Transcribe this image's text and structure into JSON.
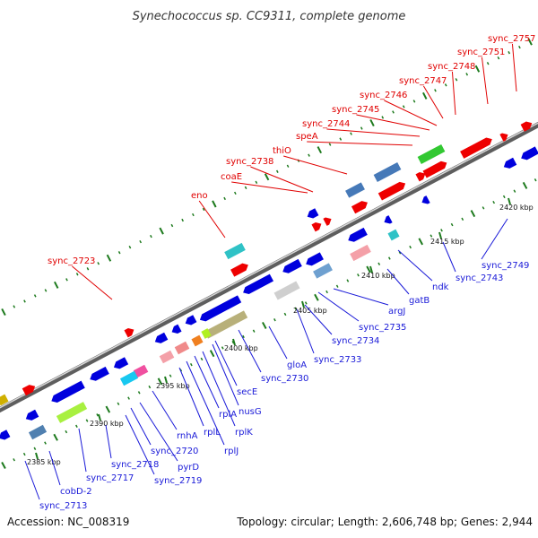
{
  "title": "Synechococcus sp. CC9311, complete genome",
  "footer": {
    "accession": "Accession: NC_008319",
    "summary": "Topology: circular; Length: 2,606,748 bp; Genes: 2,944"
  },
  "colors": {
    "forward_label": "#e00000",
    "reverse_label": "#1a1ad8",
    "forward_feature": "#ee0000",
    "reverse_feature": "#0000dd",
    "rrna_feature": "#d4b483",
    "trna_feature": "#8cc98c",
    "ruler_green": "#1d7a1d",
    "backbone": "#8a8a8a"
  },
  "ruler_ticks": [
    "2385 kbp",
    "2390 kbp",
    "2395 kbp",
    "2400 kbp",
    "2405 kbp",
    "2410 kbp",
    "2415 kbp",
    "2420 kbp"
  ],
  "forward_labels": [
    "sync_2723",
    "eno",
    "coaE",
    "sync_2738",
    "thiO",
    "speA",
    "sync_2744",
    "sync_2745",
    "sync_2746",
    "sync_2747",
    "sync_2748",
    "sync_2751",
    "sync_2757"
  ],
  "reverse_labels": [
    "sync_2713",
    "cobD-2",
    "sync_2717",
    "sync_2718",
    "sync_2719",
    "sync_2720",
    "pyrD",
    "rnhA",
    "rplL",
    "rplJ",
    "rplA",
    "rplK",
    "nusG",
    "secE",
    "sync_2730",
    "gloA",
    "sync_2733",
    "sync_2734",
    "sync_2735",
    "argJ",
    "gatB",
    "ndk",
    "sync_2743",
    "sync_2749"
  ]
}
